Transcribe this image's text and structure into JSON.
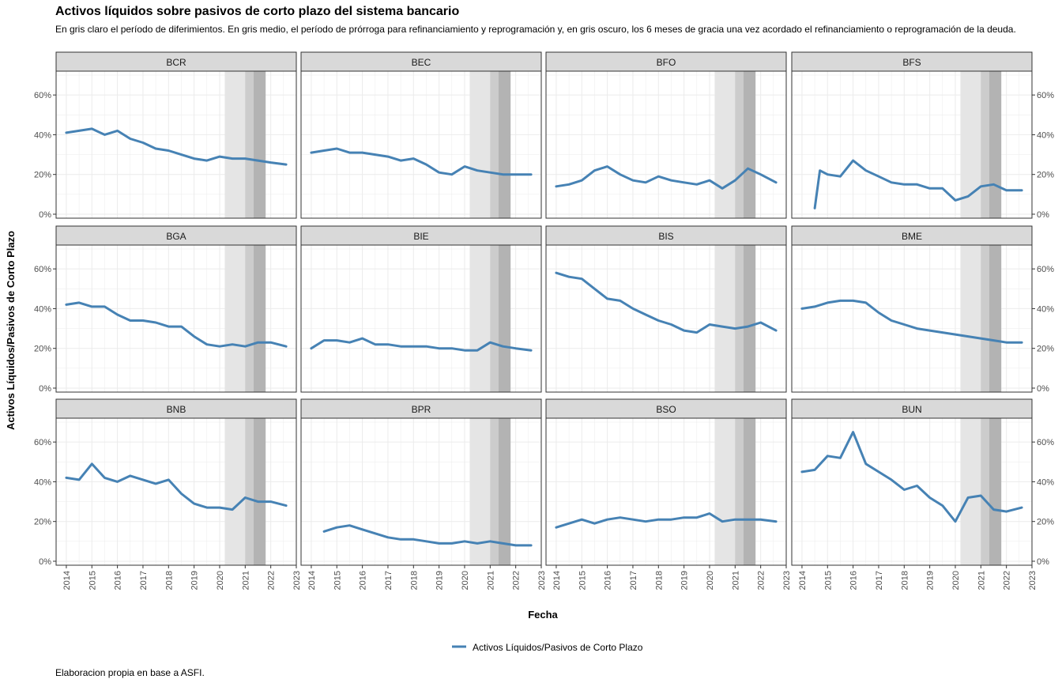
{
  "title": "Activos líquidos sobre pasivos de corto plazo del sistema bancario",
  "subtitle": "En gris claro el período de diferimientos. En gris medio, el período de prórroga para refinanciamiento y reprogramación y, en gris oscuro, los 6 meses de gracia una vez acordado el refinanciamiento o reprogramación de la deuda.",
  "caption": "Elaboracion propia en base a ASFI.",
  "colors": {
    "line": "#4682B4",
    "strip": "#d9d9d9",
    "shade_light": "#e5e5e5",
    "shade_mid": "#cccccc",
    "shade_dark": "#b3b3b3",
    "grid": "#ebebeb"
  },
  "chart_data": {
    "type": "line",
    "layout": "facet-grid 3x4",
    "xlabel": "Fecha",
    "ylabel": "Activos Líquidos/Pasivos de Corto Plazo",
    "xlim": [
      2013.6,
      2023.0
    ],
    "ylim": [
      -0.02,
      0.72
    ],
    "x_ticks": [
      "2014",
      "2015",
      "2016",
      "2017",
      "2018",
      "2019",
      "2020",
      "2021",
      "2022",
      "2023"
    ],
    "y_ticks": [
      {
        "v": 0,
        "label": "0%"
      },
      {
        "v": 0.2,
        "label": "20%"
      },
      {
        "v": 0.4,
        "label": "40%"
      },
      {
        "v": 0.6,
        "label": "60%"
      }
    ],
    "grid": true,
    "legend": {
      "position": "bottom",
      "label": "Activos Líquidos/Pasivos de Corto Plazo"
    },
    "shaded_periods": [
      {
        "name": "diferimientos",
        "shade": "light",
        "from": 2020.2,
        "to": 2021.0
      },
      {
        "name": "prórroga",
        "shade": "mid",
        "from": 2021.0,
        "to": 2021.33
      },
      {
        "name": "gracia",
        "shade": "dark",
        "from": 2021.33,
        "to": 2021.8
      }
    ],
    "series": [
      {
        "name": "BCR",
        "x": [
          2014.0,
          2014.5,
          2015.0,
          2015.5,
          2016.0,
          2016.5,
          2017.0,
          2017.5,
          2018.0,
          2018.5,
          2019.0,
          2019.5,
          2020.0,
          2020.5,
          2021.0,
          2021.5,
          2022.0,
          2022.6
        ],
        "y": [
          0.41,
          0.42,
          0.43,
          0.4,
          0.42,
          0.38,
          0.36,
          0.33,
          0.32,
          0.3,
          0.28,
          0.27,
          0.29,
          0.28,
          0.28,
          0.27,
          0.26,
          0.25
        ]
      },
      {
        "name": "BEC",
        "x": [
          2014.0,
          2014.5,
          2015.0,
          2015.5,
          2016.0,
          2016.5,
          2017.0,
          2017.5,
          2018.0,
          2018.5,
          2019.0,
          2019.5,
          2020.0,
          2020.5,
          2021.0,
          2021.5,
          2022.0,
          2022.6
        ],
        "y": [
          0.31,
          0.32,
          0.33,
          0.31,
          0.31,
          0.3,
          0.29,
          0.27,
          0.28,
          0.25,
          0.21,
          0.2,
          0.24,
          0.22,
          0.21,
          0.2,
          0.2,
          0.2
        ]
      },
      {
        "name": "BFO",
        "x": [
          2014.0,
          2014.5,
          2015.0,
          2015.5,
          2016.0,
          2016.5,
          2017.0,
          2017.5,
          2018.0,
          2018.5,
          2019.0,
          2019.5,
          2020.0,
          2020.5,
          2021.0,
          2021.5,
          2022.0,
          2022.6
        ],
        "y": [
          0.14,
          0.15,
          0.17,
          0.22,
          0.24,
          0.2,
          0.17,
          0.16,
          0.19,
          0.17,
          0.16,
          0.15,
          0.17,
          0.13,
          0.17,
          0.23,
          0.2,
          0.16
        ]
      },
      {
        "name": "BFS",
        "x": [
          2014.5,
          2014.7,
          2015.0,
          2015.5,
          2016.0,
          2016.5,
          2017.0,
          2017.5,
          2018.0,
          2018.5,
          2019.0,
          2019.5,
          2020.0,
          2020.5,
          2021.0,
          2021.5,
          2022.0,
          2022.6
        ],
        "y": [
          0.03,
          0.22,
          0.2,
          0.19,
          0.27,
          0.22,
          0.19,
          0.16,
          0.15,
          0.15,
          0.13,
          0.13,
          0.07,
          0.09,
          0.14,
          0.15,
          0.12,
          0.12
        ]
      },
      {
        "name": "BGA",
        "x": [
          2014.0,
          2014.5,
          2015.0,
          2015.5,
          2016.0,
          2016.5,
          2017.0,
          2017.5,
          2018.0,
          2018.5,
          2019.0,
          2019.5,
          2020.0,
          2020.5,
          2021.0,
          2021.5,
          2022.0,
          2022.6
        ],
        "y": [
          0.42,
          0.43,
          0.41,
          0.41,
          0.37,
          0.34,
          0.34,
          0.33,
          0.31,
          0.31,
          0.26,
          0.22,
          0.21,
          0.22,
          0.21,
          0.23,
          0.23,
          0.21
        ]
      },
      {
        "name": "BIE",
        "x": [
          2014.0,
          2014.5,
          2015.0,
          2015.5,
          2016.0,
          2016.5,
          2017.0,
          2017.5,
          2018.0,
          2018.5,
          2019.0,
          2019.5,
          2020.0,
          2020.5,
          2021.0,
          2021.5,
          2022.0,
          2022.6
        ],
        "y": [
          0.2,
          0.24,
          0.24,
          0.23,
          0.25,
          0.22,
          0.22,
          0.21,
          0.21,
          0.21,
          0.2,
          0.2,
          0.19,
          0.19,
          0.23,
          0.21,
          0.2,
          0.19
        ]
      },
      {
        "name": "BIS",
        "x": [
          2014.0,
          2014.5,
          2015.0,
          2015.5,
          2016.0,
          2016.5,
          2017.0,
          2017.5,
          2018.0,
          2018.5,
          2019.0,
          2019.5,
          2020.0,
          2020.5,
          2021.0,
          2021.5,
          2022.0,
          2022.6
        ],
        "y": [
          0.58,
          0.56,
          0.55,
          0.5,
          0.45,
          0.44,
          0.4,
          0.37,
          0.34,
          0.32,
          0.29,
          0.28,
          0.32,
          0.31,
          0.3,
          0.31,
          0.33,
          0.29
        ]
      },
      {
        "name": "BME",
        "x": [
          2014.0,
          2014.5,
          2015.0,
          2015.5,
          2016.0,
          2016.5,
          2017.0,
          2017.5,
          2018.0,
          2018.5,
          2019.0,
          2019.5,
          2020.0,
          2020.5,
          2021.0,
          2021.5,
          2022.0,
          2022.6
        ],
        "y": [
          0.4,
          0.41,
          0.43,
          0.44,
          0.44,
          0.43,
          0.38,
          0.34,
          0.32,
          0.3,
          0.29,
          0.28,
          0.27,
          0.26,
          0.25,
          0.24,
          0.23,
          0.23
        ]
      },
      {
        "name": "BNB",
        "x": [
          2014.0,
          2014.5,
          2015.0,
          2015.5,
          2016.0,
          2016.5,
          2017.0,
          2017.5,
          2018.0,
          2018.5,
          2019.0,
          2019.5,
          2020.0,
          2020.5,
          2021.0,
          2021.5,
          2022.0,
          2022.6
        ],
        "y": [
          0.42,
          0.41,
          0.49,
          0.42,
          0.4,
          0.43,
          0.41,
          0.39,
          0.41,
          0.34,
          0.29,
          0.27,
          0.27,
          0.26,
          0.32,
          0.3,
          0.3,
          0.28
        ]
      },
      {
        "name": "BPR",
        "x": [
          2014.5,
          2015.0,
          2015.5,
          2016.0,
          2016.5,
          2017.0,
          2017.5,
          2018.0,
          2018.5,
          2019.0,
          2019.5,
          2020.0,
          2020.5,
          2021.0,
          2021.5,
          2022.0,
          2022.6
        ],
        "y": [
          0.15,
          0.17,
          0.18,
          0.16,
          0.14,
          0.12,
          0.11,
          0.11,
          0.1,
          0.09,
          0.09,
          0.1,
          0.09,
          0.1,
          0.09,
          0.08,
          0.08
        ]
      },
      {
        "name": "BSO",
        "x": [
          2014.0,
          2014.5,
          2015.0,
          2015.5,
          2016.0,
          2016.5,
          2017.0,
          2017.5,
          2018.0,
          2018.5,
          2019.0,
          2019.5,
          2020.0,
          2020.5,
          2021.0,
          2021.5,
          2022.0,
          2022.6
        ],
        "y": [
          0.17,
          0.19,
          0.21,
          0.19,
          0.21,
          0.22,
          0.21,
          0.2,
          0.21,
          0.21,
          0.22,
          0.22,
          0.24,
          0.2,
          0.21,
          0.21,
          0.21,
          0.2
        ]
      },
      {
        "name": "BUN",
        "x": [
          2014.0,
          2014.5,
          2015.0,
          2015.5,
          2016.0,
          2016.5,
          2017.0,
          2017.5,
          2018.0,
          2018.5,
          2019.0,
          2019.5,
          2020.0,
          2020.5,
          2021.0,
          2021.5,
          2022.0,
          2022.6
        ],
        "y": [
          0.45,
          0.46,
          0.53,
          0.52,
          0.65,
          0.49,
          0.45,
          0.41,
          0.36,
          0.38,
          0.32,
          0.28,
          0.2,
          0.32,
          0.33,
          0.26,
          0.25,
          0.27
        ]
      }
    ]
  }
}
